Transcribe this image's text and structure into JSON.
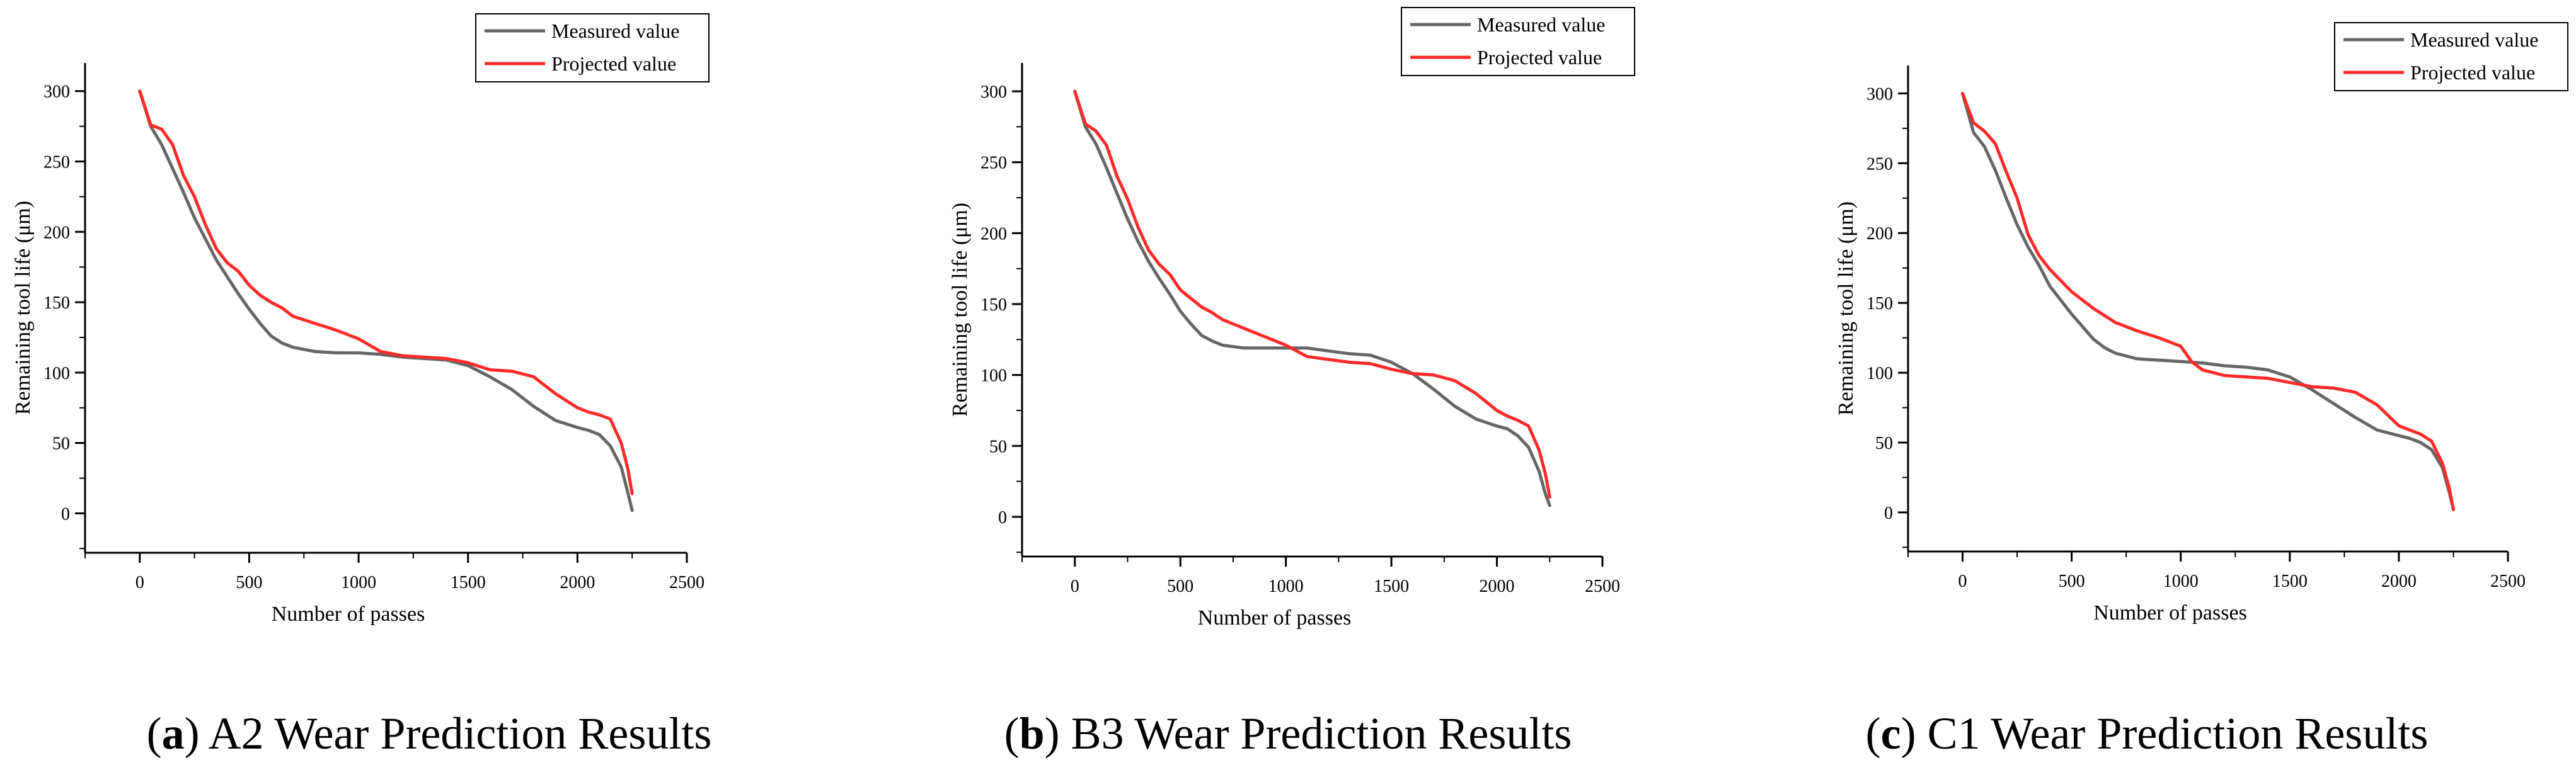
{
  "colors": {
    "measured": "#666666",
    "projected": "#ff2a2a",
    "axis": "#000000"
  },
  "chart_data": [
    {
      "type": "line",
      "title": "",
      "xlabel": "Number of passes",
      "ylabel": "Remaining tool life (μm)",
      "xlim": [
        -250,
        2500
      ],
      "ylim": [
        -28,
        320
      ],
      "xticks": [
        0,
        500,
        1000,
        1500,
        2000,
        2500
      ],
      "yticks": [
        0,
        50,
        100,
        150,
        200,
        250,
        300
      ],
      "legend": "top-right",
      "caption": {
        "letter": "a",
        "text": " A2 Wear Prediction Results"
      },
      "series": [
        {
          "name": "Measured value",
          "color": "#666666",
          "x": [
            0,
            50,
            100,
            150,
            200,
            250,
            300,
            350,
            400,
            450,
            500,
            550,
            600,
            650,
            700,
            800,
            900,
            1000,
            1100,
            1200,
            1300,
            1400,
            1500,
            1600,
            1700,
            1800,
            1900,
            2000,
            2050,
            2100,
            2150,
            2200,
            2230,
            2250
          ],
          "y": [
            300,
            275,
            262,
            245,
            228,
            210,
            195,
            180,
            168,
            156,
            145,
            135,
            126,
            121,
            118,
            115,
            114,
            114,
            113,
            111,
            110,
            109,
            105,
            97,
            88,
            76,
            66,
            61,
            59,
            56,
            48,
            33,
            15,
            2
          ]
        },
        {
          "name": "Projected value",
          "color": "#ff2a2a",
          "x": [
            0,
            50,
            100,
            150,
            200,
            250,
            300,
            350,
            400,
            450,
            500,
            550,
            600,
            650,
            700,
            800,
            900,
            1000,
            1100,
            1200,
            1300,
            1400,
            1500,
            1600,
            1700,
            1800,
            1900,
            2000,
            2050,
            2100,
            2150,
            2200,
            2230,
            2250
          ],
          "y": [
            300,
            276,
            273,
            262,
            240,
            225,
            205,
            188,
            178,
            172,
            162,
            155,
            150,
            146,
            140,
            135,
            130,
            124,
            115,
            112,
            111,
            110,
            107,
            102,
            101,
            97,
            85,
            75,
            72,
            70,
            67,
            50,
            32,
            14
          ]
        }
      ]
    },
    {
      "type": "line",
      "title": "",
      "xlabel": "Number of passes",
      "ylabel": "Remaining tool life (μm)",
      "xlim": [
        -250,
        2500
      ],
      "ylim": [
        -28,
        320
      ],
      "xticks": [
        0,
        500,
        1000,
        1500,
        2000,
        2500
      ],
      "yticks": [
        0,
        50,
        100,
        150,
        200,
        250,
        300
      ],
      "legend": "top-right",
      "caption": {
        "letter": "b",
        "text": " B3 Wear Prediction Results"
      },
      "series": [
        {
          "name": "Measured value",
          "color": "#666666",
          "x": [
            0,
            50,
            100,
            150,
            200,
            250,
            300,
            350,
            400,
            450,
            500,
            550,
            600,
            650,
            700,
            800,
            900,
            1000,
            1100,
            1200,
            1300,
            1400,
            1500,
            1600,
            1700,
            1800,
            1900,
            2000,
            2050,
            2100,
            2150,
            2200,
            2230,
            2250
          ],
          "y": [
            300,
            275,
            263,
            246,
            228,
            210,
            194,
            180,
            168,
            157,
            145,
            136,
            128,
            124,
            121,
            119,
            119,
            119,
            119,
            117,
            115,
            114,
            109,
            101,
            90,
            78,
            69,
            64,
            62,
            57,
            49,
            32,
            16,
            8
          ]
        },
        {
          "name": "Projected value",
          "color": "#ff2a2a",
          "x": [
            0,
            50,
            100,
            150,
            200,
            250,
            300,
            350,
            400,
            450,
            500,
            550,
            600,
            650,
            700,
            800,
            900,
            1000,
            1100,
            1200,
            1300,
            1400,
            1500,
            1600,
            1700,
            1800,
            1900,
            2000,
            2050,
            2100,
            2150,
            2200,
            2230,
            2250
          ],
          "y": [
            300,
            277,
            272,
            262,
            240,
            224,
            204,
            188,
            178,
            171,
            160,
            154,
            148,
            144,
            139,
            133,
            127,
            121,
            113,
            111,
            109,
            108,
            104,
            101,
            100,
            96,
            87,
            75,
            71,
            68,
            64,
            47,
            30,
            14
          ]
        }
      ]
    },
    {
      "type": "line",
      "title": "",
      "xlabel": "Number of passes",
      "ylabel": "Remaining tool life (μm)",
      "xlim": [
        -250,
        2500
      ],
      "ylim": [
        -28,
        320
      ],
      "xticks": [
        0,
        500,
        1000,
        1500,
        2000,
        2500
      ],
      "yticks": [
        0,
        50,
        100,
        150,
        200,
        250,
        300
      ],
      "legend": "top-right",
      "caption": {
        "letter": "c",
        "text": " C1 Wear Prediction Results"
      },
      "series": [
        {
          "name": "Measured value",
          "color": "#666666",
          "x": [
            0,
            50,
            100,
            150,
            200,
            250,
            300,
            350,
            400,
            450,
            500,
            550,
            600,
            650,
            700,
            800,
            900,
            1000,
            1100,
            1200,
            1300,
            1400,
            1500,
            1600,
            1700,
            1800,
            1900,
            2000,
            2050,
            2100,
            2150,
            2200,
            2230,
            2250
          ],
          "y": [
            300,
            272,
            262,
            245,
            225,
            206,
            190,
            177,
            162,
            152,
            142,
            133,
            124,
            118,
            114,
            110,
            109,
            108,
            107,
            105,
            104,
            102,
            97,
            88,
            78,
            68,
            59,
            55,
            53,
            50,
            45,
            32,
            15,
            2
          ]
        },
        {
          "name": "Projected value",
          "color": "#ff2a2a",
          "x": [
            0,
            50,
            100,
            150,
            200,
            250,
            300,
            350,
            400,
            450,
            500,
            550,
            600,
            650,
            700,
            800,
            900,
            1000,
            1050,
            1100,
            1200,
            1300,
            1400,
            1500,
            1600,
            1700,
            1800,
            1900,
            2000,
            2050,
            2100,
            2150,
            2200,
            2230,
            2250
          ],
          "y": [
            300,
            279,
            273,
            264,
            244,
            225,
            199,
            184,
            174,
            166,
            158,
            152,
            146,
            141,
            136,
            130,
            125,
            119,
            108,
            102,
            98,
            97,
            96,
            93,
            90,
            89,
            86,
            77,
            62,
            59,
            56,
            51,
            35,
            18,
            2
          ]
        }
      ]
    }
  ]
}
